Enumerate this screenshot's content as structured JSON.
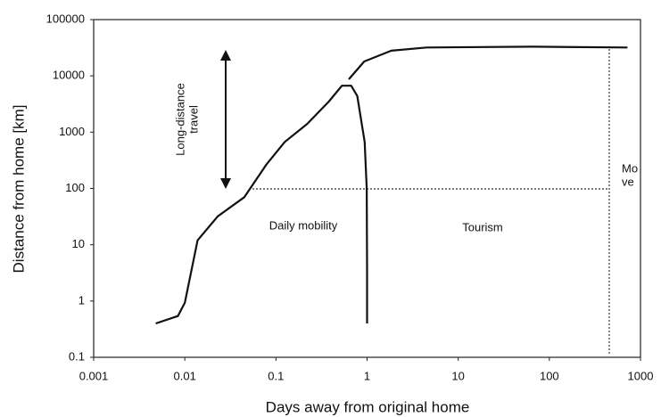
{
  "chart_data": {
    "type": "line",
    "xlabel": "Days away from original home",
    "ylabel": "Distance from home [km]",
    "xscale": "log",
    "yscale": "log",
    "xlim": [
      0.001,
      1000
    ],
    "ylim": [
      0.1,
      100000
    ],
    "xticks": [
      0.001,
      0.01,
      0.1,
      1,
      10,
      100,
      1000
    ],
    "yticks": [
      0.1,
      1,
      10,
      100,
      1000,
      10000,
      100000
    ],
    "series": [
      {
        "color": "#111111",
        "x": [
          0.0048,
          0.0084,
          0.01,
          0.0138,
          0.023,
          0.045,
          0.079,
          0.125,
          0.22,
          0.38,
          0.53,
          0.67,
          0.78,
          0.94,
          0.99,
          1.0,
          1.0
        ],
        "values": [
          0.4,
          0.54,
          0.93,
          12,
          32,
          70,
          270,
          670,
          1400,
          3500,
          6700,
          6700,
          4400,
          670,
          100,
          4,
          0.4
        ]
      },
      {
        "color": "#111111",
        "x": [
          0.63,
          0.93,
          1.84,
          4.5,
          66,
          720
        ],
        "values": [
          8700,
          18000,
          28000,
          32000,
          33000,
          32000
        ]
      }
    ],
    "annotations": [
      {
        "lines": [
          "Long-distance",
          "travel"
        ]
      },
      {
        "lines": [
          "Daily mobility"
        ]
      },
      {
        "lines": [
          "Tourism"
        ]
      },
      {
        "lines": [
          "Mo",
          "ve"
        ]
      }
    ]
  }
}
